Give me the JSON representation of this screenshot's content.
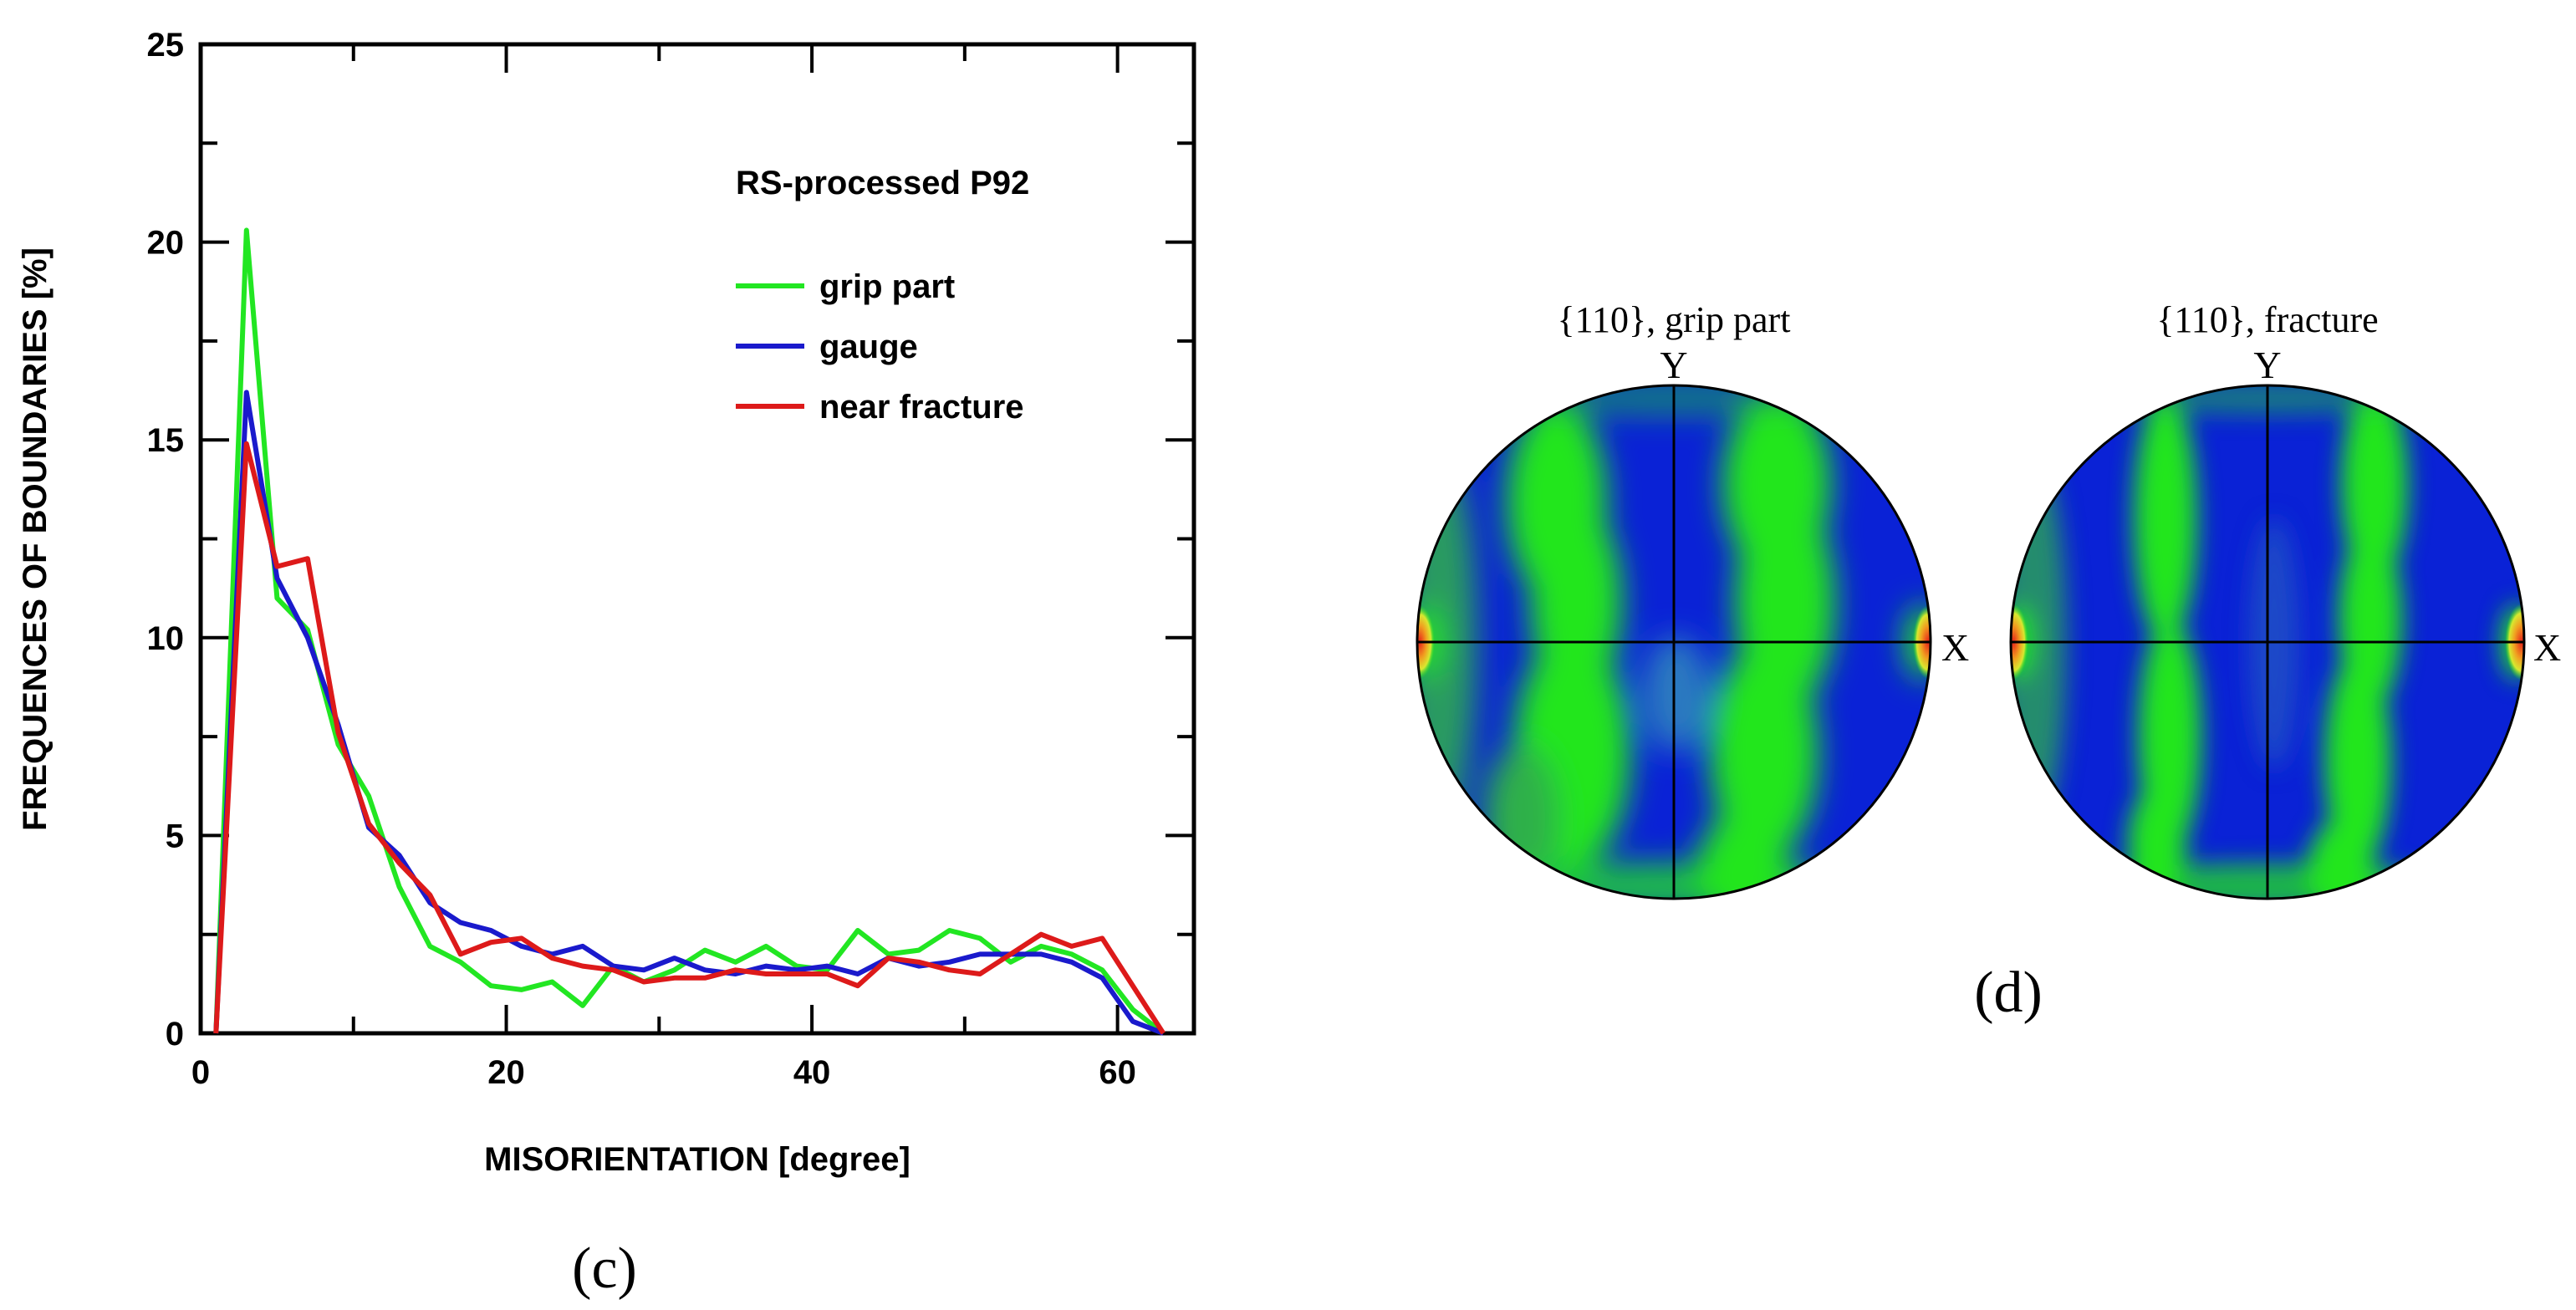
{
  "chart_data": [
    {
      "type": "line",
      "title": "RS-processed P92",
      "xlabel": "MISORIENTATION [degree]",
      "ylabel": "FREQUENCES OF BOUNDARIES [%]",
      "xlim": [
        0,
        65
      ],
      "ylim": [
        0,
        25
      ],
      "xticks": [
        0,
        20,
        40,
        60
      ],
      "yticks": [
        0,
        5,
        10,
        15,
        20,
        25
      ],
      "grid": false,
      "legend_position": "top-right",
      "panel_label": "(c)",
      "series": [
        {
          "name": "grip part",
          "color": "#22e622",
          "x": [
            1,
            3,
            5,
            7,
            9,
            11,
            13,
            15,
            17,
            19,
            21,
            23,
            25,
            27,
            29,
            31,
            33,
            35,
            37,
            39,
            41,
            43,
            45,
            47,
            49,
            51,
            53,
            55,
            57,
            59,
            61,
            63
          ],
          "y": [
            0,
            20.3,
            11.0,
            10.2,
            7.3,
            6.0,
            3.7,
            2.2,
            1.8,
            1.2,
            1.1,
            1.3,
            0.7,
            1.7,
            1.3,
            1.6,
            2.1,
            1.8,
            2.2,
            1.7,
            1.6,
            2.6,
            2.0,
            2.1,
            2.6,
            2.4,
            1.8,
            2.2,
            2.0,
            1.6,
            0.6,
            0.0
          ]
        },
        {
          "name": "gauge",
          "color": "#1a1acc",
          "x": [
            1,
            3,
            5,
            7,
            9,
            11,
            13,
            15,
            17,
            19,
            21,
            23,
            25,
            27,
            29,
            31,
            33,
            35,
            37,
            39,
            41,
            43,
            45,
            47,
            49,
            51,
            53,
            55,
            57,
            59,
            61,
            63
          ],
          "y": [
            0,
            16.2,
            11.5,
            10.0,
            7.8,
            5.2,
            4.5,
            3.3,
            2.8,
            2.6,
            2.2,
            2.0,
            2.2,
            1.7,
            1.6,
            1.9,
            1.6,
            1.5,
            1.7,
            1.6,
            1.7,
            1.5,
            1.9,
            1.7,
            1.8,
            2.0,
            2.0,
            2.0,
            1.8,
            1.4,
            0.3,
            0.0
          ]
        },
        {
          "name": "near fracture",
          "color": "#dd1a1a",
          "x": [
            1,
            3,
            5,
            7,
            9,
            11,
            13,
            15,
            17,
            19,
            21,
            23,
            25,
            27,
            29,
            31,
            33,
            35,
            37,
            39,
            41,
            43,
            45,
            47,
            49,
            51,
            53,
            55,
            57,
            59,
            61,
            63
          ],
          "y": [
            0,
            14.9,
            11.8,
            12.0,
            7.6,
            5.3,
            4.3,
            3.5,
            2.0,
            2.3,
            2.4,
            1.9,
            1.7,
            1.6,
            1.3,
            1.4,
            1.4,
            1.6,
            1.5,
            1.5,
            1.5,
            1.2,
            1.9,
            1.8,
            1.6,
            1.5,
            2.0,
            2.5,
            2.2,
            2.4,
            1.2,
            0.0
          ]
        }
      ]
    }
  ],
  "pole_figures": {
    "panel_label": "(d)",
    "figures": [
      {
        "title": "{110}, grip part",
        "x_axis": "X",
        "y_axis": "Y"
      },
      {
        "title": "{110}, fracture",
        "x_axis": "X",
        "y_axis": "Y"
      }
    ]
  },
  "colors": {
    "low": "#0a22d6",
    "mid": "#22e61e",
    "high": "#e8241a",
    "axis": "#000000"
  }
}
